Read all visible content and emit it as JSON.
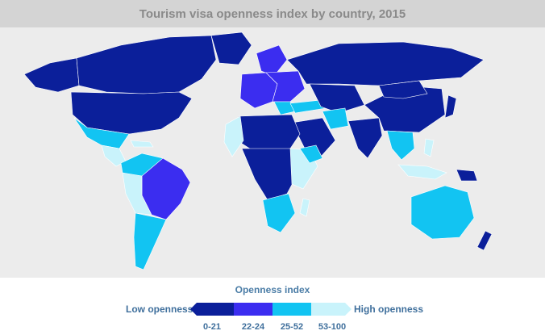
{
  "title": "Tourism visa openness index by country, 2015",
  "legend": {
    "title": "Openness index",
    "low_label": "Low openness",
    "high_label": "High openness",
    "bins": [
      {
        "label": "0-21",
        "color": "#0b1f9a"
      },
      {
        "label": "22-24",
        "color": "#3b2df0"
      },
      {
        "label": "25-52",
        "color": "#12c4f2"
      },
      {
        "label": "53-100",
        "color": "#c9f3fb"
      }
    ]
  },
  "colors": {
    "background": "#ececec",
    "title_band": "#d4d4d4",
    "no_data": "#f2f2f2"
  }
}
